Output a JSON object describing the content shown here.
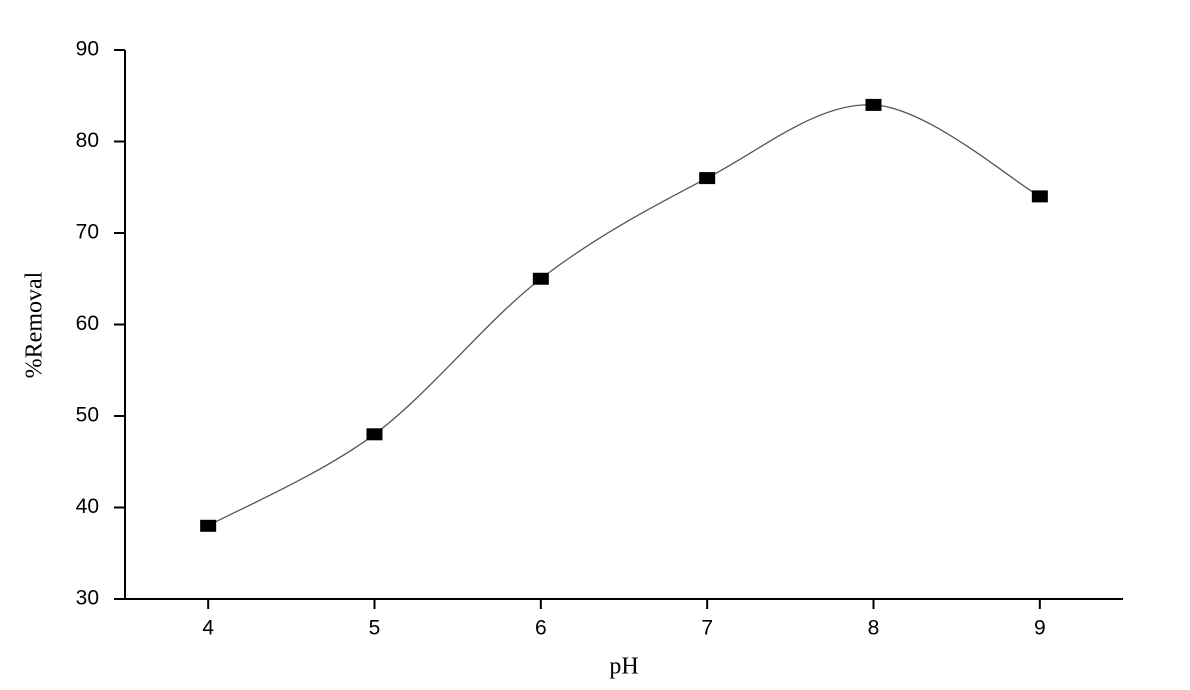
{
  "chart_data": {
    "type": "line",
    "x_label": "pH",
    "y_label": "%Removal",
    "x": [
      4,
      5,
      6,
      7,
      8,
      9
    ],
    "series": [
      {
        "name": "%Removal",
        "color": "#000000",
        "values": [
          38,
          48,
          65,
          76,
          84,
          74
        ]
      }
    ],
    "xlim": [
      3.5,
      9.5
    ],
    "xticks": [
      4,
      5,
      6,
      7,
      8,
      9
    ],
    "ylim": [
      30,
      90
    ],
    "yticks": [
      30,
      40,
      50,
      60,
      70,
      80,
      90
    ],
    "grid": false,
    "smooth": true
  }
}
